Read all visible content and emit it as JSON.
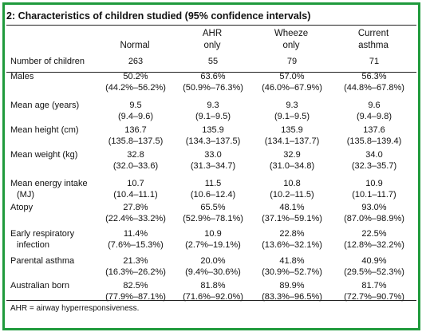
{
  "title": "2: Characteristics of children studied (95% confidence intervals)",
  "columns": [
    {
      "line1": "",
      "line2": "Normal"
    },
    {
      "line1": "AHR",
      "line2": "only"
    },
    {
      "line1": "Wheeze",
      "line2": "only"
    },
    {
      "line1": "Current",
      "line2": "asthma"
    }
  ],
  "rows": [
    {
      "label1": "Number of children",
      "label2": "",
      "cells": [
        [
          "263",
          ""
        ],
        [
          "55",
          ""
        ],
        [
          "79",
          ""
        ],
        [
          "71",
          ""
        ]
      ]
    },
    {
      "label1": "Males",
      "label2": "",
      "cells": [
        [
          "50.2%",
          "(44.2%–56.2%)"
        ],
        [
          "63.6%",
          "(50.9%–76.3%)"
        ],
        [
          "57.0%",
          "(46.0%–67.9%)"
        ],
        [
          "56.3%",
          "(44.8%–67.8%)"
        ]
      ]
    },
    {
      "label1": "Mean age (years)",
      "label2": "",
      "cells": [
        [
          "9.5",
          "(9.4–9.6)"
        ],
        [
          "9.3",
          "(9.1–9.5)"
        ],
        [
          "9.3",
          "(9.1–9.5)"
        ],
        [
          "9.6",
          "(9.4–9.8)"
        ]
      ]
    },
    {
      "label1": "Mean height (cm)",
      "label2": "",
      "cells": [
        [
          "136.7",
          "(135.8–137.5)"
        ],
        [
          "135.9",
          "(134.3–137.5)"
        ],
        [
          "135.9",
          "(134.1–137.7)"
        ],
        [
          "137.6",
          "(135.8–139.4)"
        ]
      ]
    },
    {
      "label1": "Mean weight (kg)",
      "label2": "",
      "cells": [
        [
          "32.8",
          "(32.0–33.6)"
        ],
        [
          "33.0",
          "(31.3–34.7)"
        ],
        [
          "32.9",
          "(31.0–34.8)"
        ],
        [
          "34.0",
          "(32.3–35.7)"
        ]
      ]
    },
    {
      "label1": "Mean energy intake",
      "label2": "(MJ)",
      "cells": [
        [
          "10.7",
          "(10.4–11.1)"
        ],
        [
          "11.5",
          "(10.6–12.4)"
        ],
        [
          "10.8",
          "(10.2–11.5)"
        ],
        [
          "10.9",
          "(10.1–11.7)"
        ]
      ]
    },
    {
      "label1": "Atopy",
      "label2": "",
      "cells": [
        [
          "27.8%",
          "(22.4%–33.2%)"
        ],
        [
          "65.5%",
          "(52.9%–78.1%)"
        ],
        [
          "48.1%",
          "(37.1%–59.1%)"
        ],
        [
          "93.0%",
          "(87.0%–98.9%)"
        ]
      ]
    },
    {
      "label1": "Early respiratory",
      "label2": "infection",
      "cells": [
        [
          "11.4%",
          "(7.6%–15.3%)"
        ],
        [
          "10.9",
          "(2.7%–19.1%)"
        ],
        [
          "22.8%",
          "(13.6%–32.1%)"
        ],
        [
          "22.5%",
          "(12.8%–32.2%)"
        ]
      ]
    },
    {
      "label1": "Parental asthma",
      "label2": "",
      "cells": [
        [
          "21.3%",
          "(16.3%–26.2%)"
        ],
        [
          "20.0%",
          "(9.4%–30.6%)"
        ],
        [
          "41.8%",
          "(30.9%–52.7%)"
        ],
        [
          "40.9%",
          "(29.5%–52.3%)"
        ]
      ]
    },
    {
      "label1": "Australian born",
      "label2": "",
      "cells": [
        [
          "82.5%",
          "(77.9%–87.1%)"
        ],
        [
          "81.8%",
          "(71.6%–92.0%)"
        ],
        [
          "89.9%",
          "(83.3%–96.5%)"
        ],
        [
          "81.7%",
          "(72.7%–90.7%)"
        ]
      ]
    }
  ],
  "footnote": "AHR = airway hyperresponsiveness."
}
